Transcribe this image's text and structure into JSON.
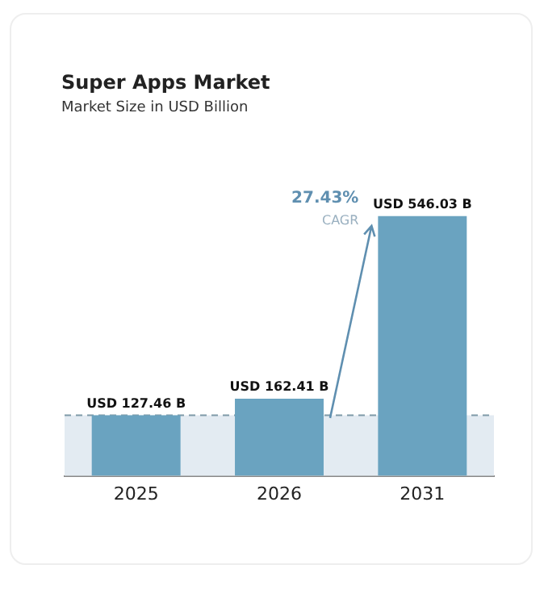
{
  "chart_data": {
    "type": "bar",
    "title": "Super Apps Market",
    "subtitle": "Market Size in USD Billion",
    "categories": [
      "2025",
      "2026",
      "2031"
    ],
    "values": [
      127.46,
      162.41,
      546.03
    ],
    "value_labels": [
      "USD 127.46 B",
      "USD 162.41 B",
      "USD 546.03 B"
    ],
    "color": "#6aa3c0",
    "annotations": [
      "CAGR",
      "27.43%"
    ],
    "ref_lines": [
      {
        "axis": "y",
        "value": 127.46,
        "line_style": "dashed",
        "color": "#7f9aa8"
      }
    ],
    "bands": [
      {
        "axis": "y",
        "from": 0,
        "to": 127.46,
        "color": "#e3ebf2"
      }
    ],
    "tick_labels": "x",
    "grid": false,
    "legend": false
  }
}
